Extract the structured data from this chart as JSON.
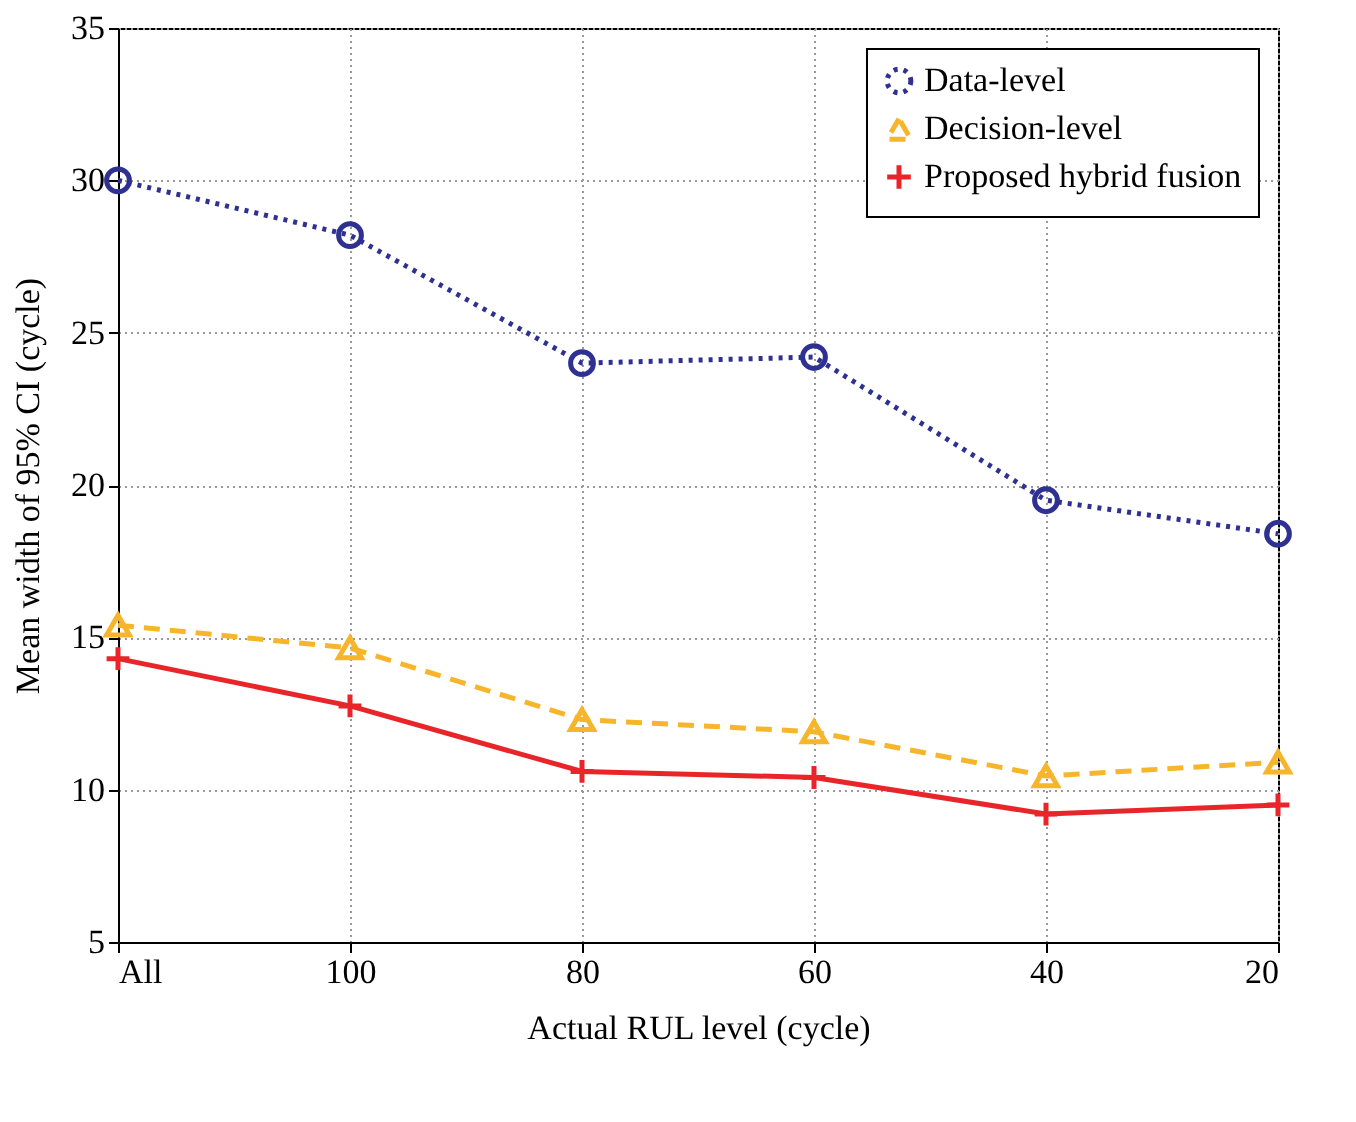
{
  "chart_data": {
    "type": "line",
    "xlabel": "Actual RUL level (cycle)",
    "ylabel": "Mean width of 95% CI (cycle)",
    "categories": [
      "All",
      "100",
      "80",
      "60",
      "40",
      "20"
    ],
    "ylim": [
      5,
      35
    ],
    "yticks": [
      5,
      10,
      15,
      20,
      25,
      30,
      35
    ],
    "grid": true,
    "legend": "top right",
    "series": [
      {
        "name": "Data-level",
        "color": "#2e3192",
        "marker": "circle",
        "line_style": "dotted",
        "values": [
          30.0,
          28.2,
          24.0,
          24.2,
          19.5,
          18.4
        ]
      },
      {
        "name": "Decision-level",
        "color": "#f7b52c",
        "marker": "triangle",
        "line_style": "dashed",
        "values": [
          15.4,
          14.65,
          12.3,
          11.9,
          10.45,
          10.9
        ]
      },
      {
        "name": "Proposed hybrid fusion",
        "color": "#e8262a",
        "marker": "cross",
        "line_style": "solid",
        "values": [
          14.3,
          12.75,
          10.6,
          10.4,
          9.2,
          9.5
        ]
      }
    ]
  }
}
